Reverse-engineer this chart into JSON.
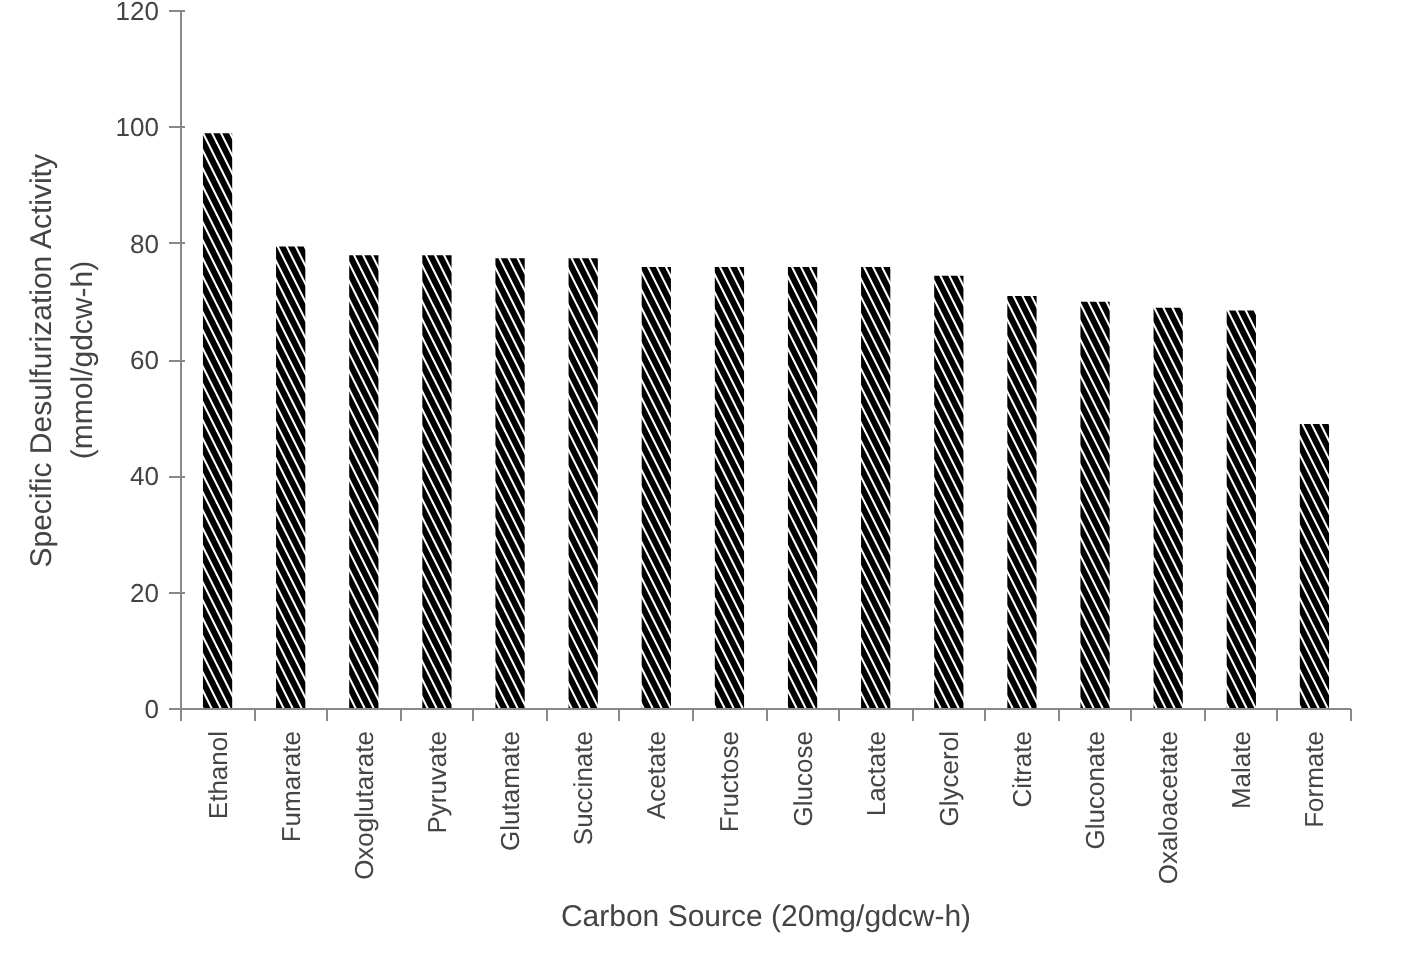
{
  "chart_data": {
    "type": "bar",
    "xlabel": "Carbon Source (20mg/gdcw-h)",
    "ylabel": "Specific Desulfurization Activity\n(mmol/gdcw-h)",
    "categories": [
      "Ethanol",
      "Fumarate",
      "Oxoglutarate",
      "Pyruvate",
      "Glutamate",
      "Succinate",
      "Acetate",
      "Fructose",
      "Glucose",
      "Lactate",
      "Glycerol",
      "Citrate",
      "Gluconate",
      "Oxaloacetate",
      "Malate",
      "Formate"
    ],
    "values": [
      99,
      79.5,
      78,
      78,
      77.5,
      77.5,
      76,
      76,
      76,
      76,
      74.5,
      71,
      70,
      69,
      68.5,
      49
    ],
    "color": "#000000",
    "ylim": [
      0,
      120
    ],
    "yticks": [
      0,
      20,
      40,
      60,
      80,
      100,
      120
    ],
    "grid": false
  }
}
